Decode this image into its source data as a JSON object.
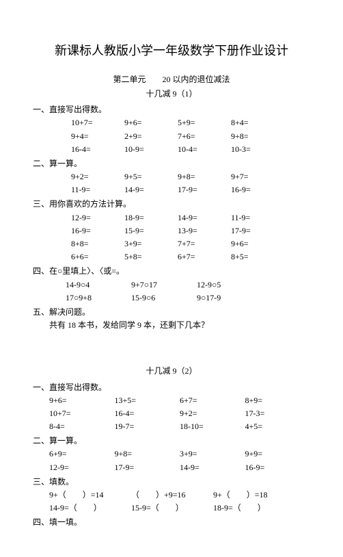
{
  "title": "新课标人教版小学一年级数学下册作业设计",
  "unit": "第二单元　　20 以内的退位减法",
  "part1": {
    "subtitle": "十几减 9（1）",
    "sections": [
      {
        "head": "一、直接写出得数。",
        "rows": [
          [
            "10+7=",
            "9+6=",
            "5+9=",
            "8+4="
          ],
          [
            "9+4=",
            "2+9=",
            "7+6=",
            "9+8="
          ],
          [
            "16-4=",
            "10-9=",
            "10-4=",
            "10-3="
          ]
        ]
      },
      {
        "head": "二、算一算。",
        "rows": [
          [
            "9+2=",
            "9+5=",
            "9+8=",
            "9+7="
          ],
          [
            "11-9=",
            "14-9=",
            "17-9=",
            "16-9="
          ]
        ]
      },
      {
        "head": "三、用你喜欢的方法计算。",
        "rows": [
          [
            "12-9=",
            "18-9=",
            "14-9=",
            "11-9="
          ],
          [
            "16-9=",
            "15-9=",
            "13-9=",
            "17-9="
          ],
          [
            "8+8=",
            "3+9=",
            "7+7=",
            "9+6="
          ],
          [
            "6+6=",
            "5+8=",
            "6+7=",
            "8+5="
          ]
        ]
      },
      {
        "head": "四、在○里填上〉、〈或=。",
        "rows": [
          [
            "14-9○4",
            "9+7○17",
            "12-9○5"
          ],
          [
            "17○9+8",
            "15-9○6",
            "9○17-9"
          ]
        ]
      },
      {
        "head": "五、解决问题。",
        "word": "共有 18 本书，发给同学 9 本，还剩下几本？"
      }
    ]
  },
  "part2": {
    "subtitle": "十几减 9（2）",
    "sections": [
      {
        "head": "一、直接写出得数。",
        "rows": [
          [
            "9+6=",
            "13+5=",
            "6+7=",
            "8+9="
          ],
          [
            "10+7=",
            "16-4=",
            "9+2=",
            "17-3="
          ],
          [
            "8-4=",
            "19-7=",
            "18-10=",
            "4+5="
          ]
        ]
      },
      {
        "head": "二、算一算。",
        "rows": [
          [
            "6+9=",
            "9+8=",
            "3+9=",
            "9+9="
          ],
          [
            "12-9=",
            "17-9=",
            "14-9=",
            "16-9="
          ]
        ]
      },
      {
        "head": "三、填数。",
        "rows": [
          [
            "9+（　　）=14",
            "（　　）+9=16",
            "9+（　　）=18"
          ],
          [
            "14-9=（　　）",
            "15-9=（　　）",
            "18-9=（　　）"
          ]
        ]
      },
      {
        "head": "四、填一填。"
      }
    ]
  }
}
